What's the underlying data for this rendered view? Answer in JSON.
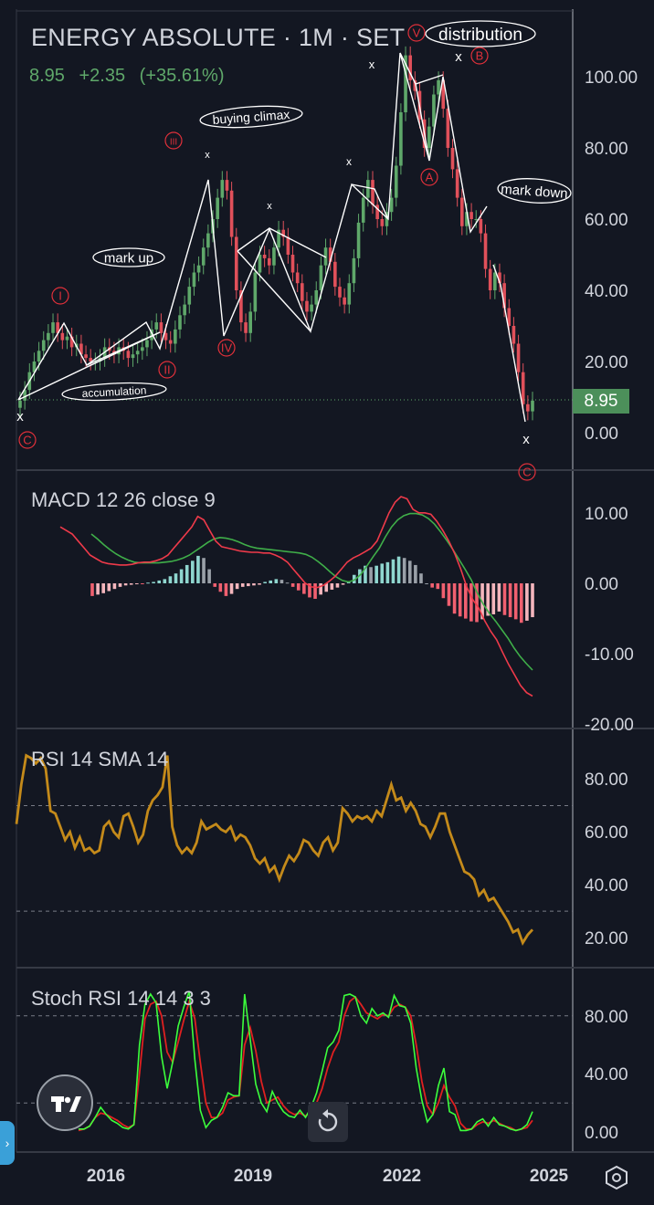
{
  "header": {
    "title": "ENERGY ABSOLUTE · 1M · SET",
    "last_price": "8.95",
    "change": "+2.35",
    "change_pct": "(+35.61%)",
    "up_color": "#5fa86a"
  },
  "price_tag": "8.95",
  "panes": {
    "main": {
      "y_ticks": [
        "100.00",
        "80.00",
        "60.00",
        "40.00",
        "20.00",
        "0.00"
      ]
    },
    "macd": {
      "title": "MACD 12 26 close 9",
      "y_ticks": [
        "10.00",
        "0.00",
        "-10.00",
        "-20.00"
      ]
    },
    "rsi": {
      "title": "RSI 14 SMA 14",
      "y_ticks": [
        "80.00",
        "60.00",
        "40.00",
        "20.00"
      ]
    },
    "stoch": {
      "title": "Stoch RSI 14 14 3 3",
      "y_ticks": [
        "80.00",
        "40.00",
        "0.00"
      ]
    }
  },
  "x_ticks": [
    "2016",
    "2019",
    "2022",
    "2025"
  ],
  "annotations": {
    "labels": [
      "distribution",
      "buying climax",
      "mark up",
      "mark down",
      "accumulation"
    ],
    "waves": [
      "V",
      "B",
      "III",
      "A",
      "I",
      "IV",
      "II",
      "C",
      "C"
    ],
    "markers": [
      "x",
      "x",
      "x",
      "x",
      "x",
      "x",
      "x",
      "x"
    ]
  },
  "colors": {
    "background": "#131722",
    "up": "#5fa86a",
    "down": "#e0505a",
    "macd": "#ef3a4a",
    "signal": "#3fae49",
    "rsi": "#c48a1a",
    "stoch_k": "#3cff3c",
    "stoch_d": "#e02020",
    "wave_label": "#e0303a"
  },
  "icons": {
    "logo": "tradingview-logo-icon",
    "reset": "reset-icon",
    "settings": "settings-icon",
    "expand": "chevron-right-icon"
  },
  "chart_data": [
    {
      "type": "candlestick",
      "ylim": [
        -10,
        110
      ],
      "x_start": 2014.5,
      "x_end": 2025.0,
      "series": [
        {
          "values": [
            9,
            12,
            17,
            20,
            23,
            26,
            28,
            31,
            28,
            26,
            27,
            24,
            25,
            22,
            21,
            20,
            20,
            21,
            24,
            23,
            22,
            24,
            23,
            21,
            22,
            23,
            24,
            26,
            29,
            31,
            28,
            26,
            25,
            29,
            33,
            36,
            41,
            45,
            47,
            52,
            56,
            60,
            66,
            71,
            68,
            55,
            40,
            31,
            28,
            34,
            45,
            50,
            49,
            47,
            52,
            57,
            55,
            50,
            45,
            42,
            37,
            34,
            36,
            40,
            47,
            52,
            48,
            41,
            38,
            36,
            42,
            49,
            59,
            66,
            71,
            64,
            60,
            58,
            62,
            66,
            75,
            90,
            106,
            99,
            96,
            88,
            80,
            86,
            95,
            99,
            91,
            80,
            74,
            66,
            58,
            62,
            60,
            60,
            56,
            46,
            40,
            45,
            42,
            35,
            30,
            25,
            17,
            8,
            6,
            9
          ]
        }
      ]
    },
    {
      "type": "line",
      "ylim": [
        -20,
        15
      ],
      "series": [
        {
          "values": [
            8,
            7.5,
            7,
            6,
            5,
            4,
            3.5,
            3,
            2.8,
            2.7,
            2.6,
            2.6,
            2.7,
            2.9,
            3,
            3,
            3.2,
            3.5,
            4,
            5,
            6,
            7,
            8,
            9.5,
            9,
            7.5,
            6,
            5.2,
            5,
            4.8,
            4.6,
            4.5,
            4.4,
            4.4,
            4.3,
            4.3,
            4,
            3.6,
            3,
            2,
            1,
            0,
            -0.5,
            -0.6,
            -0.3,
            0.3,
            1,
            2,
            3,
            3.6,
            4,
            4.5,
            5,
            6,
            8,
            10,
            11.5,
            12.3,
            12,
            10.5,
            10,
            10,
            9.8,
            8.8,
            7.5,
            6,
            4.2,
            2,
            -0.5,
            -2.3,
            -3.5,
            -5.3,
            -6.8,
            -8,
            -9.8,
            -11.5,
            -13,
            -14.5,
            -15.5,
            -16
          ]
        },
        {
          "values": [
            7,
            6.3,
            5.5,
            4.8,
            4.2,
            3.7,
            3.3,
            3,
            2.9,
            2.9,
            2.9,
            2.9,
            3,
            3.1,
            3.3,
            3.6,
            4,
            4.6,
            5.2,
            5.8,
            6.3,
            6.5,
            6.4,
            6.2,
            5.9,
            5.5,
            5.2,
            5,
            4.9,
            4.8,
            4.7,
            4.6,
            4.5,
            4.4,
            4.3,
            4.1,
            3.7,
            3.1,
            2.4,
            1.6,
            0.9,
            0.4,
            0.2,
            0.5,
            1.3,
            2.5,
            3.8,
            5,
            6.6,
            8,
            9,
            9.6,
            9.9,
            9.9,
            9.7,
            9.2,
            8.4,
            7.3,
            6.1,
            4.8,
            3.4,
            2,
            0.5,
            -1.4,
            -3,
            -4.3,
            -5.4,
            -6.6,
            -7.8,
            -9.2,
            -10.4,
            -11.4,
            -12.3
          ]
        },
        {
          "values": [
            -1.8,
            -1.6,
            -1.4,
            -1.1,
            -0.8,
            -0.5,
            -0.3,
            -0.2,
            -0.1,
            -0.1,
            0.1,
            0.2,
            0.4,
            0.6,
            1,
            1.4,
            2,
            2.6,
            3.2,
            3.9,
            3.6,
            2,
            -0.5,
            -1.2,
            -1.8,
            -1.5,
            -0.8,
            -0.5,
            -0.4,
            -0.3,
            -0.2,
            0.2,
            0.4,
            0.6,
            0.5,
            0.1,
            -0.5,
            -1,
            -1.5,
            -2,
            -2.2,
            -1.6,
            -1.2,
            -0.9,
            -0.6,
            -0.2,
            0.3,
            1.2,
            2,
            2.5,
            2.3,
            2.5,
            2.8,
            3,
            3.4,
            3.8,
            3.6,
            3.2,
            2.6,
            1.4,
            0,
            -0.6,
            -0.8,
            -2.1,
            -3.2,
            -4.3,
            -4.7,
            -5,
            -5.4,
            -5.5,
            -5.1,
            -4.6,
            -4.4,
            -4,
            -4.5,
            -4.8,
            -5.1,
            -5.6,
            -5.3,
            -4.8
          ]
        }
      ]
    },
    {
      "type": "line",
      "ylim": [
        10,
        95
      ],
      "series": [
        {
          "values": [
            63,
            78,
            89,
            88,
            86,
            88,
            84,
            68,
            67,
            62,
            57,
            60,
            54,
            58,
            53,
            54,
            52,
            53,
            62,
            64,
            60,
            58,
            66,
            67,
            62,
            56,
            59,
            68,
            72,
            74,
            77,
            89,
            62,
            55,
            52,
            54,
            52,
            56,
            64,
            61,
            62,
            63,
            61,
            60,
            62,
            57,
            59,
            58,
            55,
            50,
            48,
            50,
            45,
            47,
            42,
            47,
            51,
            49,
            52,
            57,
            56,
            53,
            51,
            56,
            58,
            53,
            56,
            69,
            67,
            64,
            66,
            65,
            66,
            64,
            68,
            66,
            72,
            78,
            72,
            73,
            68,
            71,
            68,
            63,
            62,
            58,
            62,
            67,
            67,
            60,
            55,
            50,
            45,
            44,
            42,
            36,
            38,
            34,
            35,
            32,
            29,
            26,
            22,
            23,
            18,
            21,
            23
          ]
        }
      ]
    },
    {
      "type": "line",
      "ylim": [
        0,
        100
      ],
      "series": [
        {
          "values": [
            2,
            2,
            4,
            10,
            17,
            12,
            8,
            6,
            3,
            2,
            5,
            60,
            88,
            95,
            89,
            52,
            30,
            48,
            73,
            86,
            97,
            50,
            15,
            3,
            8,
            10,
            17,
            27,
            25,
            25,
            95,
            64,
            33,
            20,
            14,
            28,
            20,
            14,
            11,
            10,
            15,
            10,
            17,
            27,
            42,
            58,
            62,
            70,
            94,
            95,
            93,
            80,
            75,
            85,
            80,
            82,
            79,
            94,
            87,
            86,
            75,
            44,
            22,
            7,
            12,
            32,
            44,
            14,
            12,
            1,
            1,
            2,
            7,
            9,
            4,
            10,
            5,
            4,
            2,
            1,
            2,
            5,
            14
          ]
        },
        {
          "values": [
            1,
            2,
            4,
            10,
            13,
            12,
            10,
            8,
            5,
            3,
            5,
            40,
            78,
            88,
            90,
            80,
            55,
            48,
            62,
            77,
            90,
            78,
            48,
            20,
            10,
            10,
            13,
            22,
            24,
            25,
            60,
            72,
            56,
            35,
            20,
            22,
            24,
            18,
            14,
            12,
            13,
            11,
            14,
            20,
            30,
            44,
            55,
            62,
            80,
            90,
            93,
            88,
            82,
            80,
            78,
            81,
            80,
            86,
            88,
            86,
            80,
            60,
            35,
            18,
            12,
            20,
            32,
            24,
            18,
            6,
            2,
            2,
            5,
            7,
            6,
            8,
            6,
            4,
            3,
            1,
            2,
            3,
            8
          ]
        }
      ]
    }
  ]
}
